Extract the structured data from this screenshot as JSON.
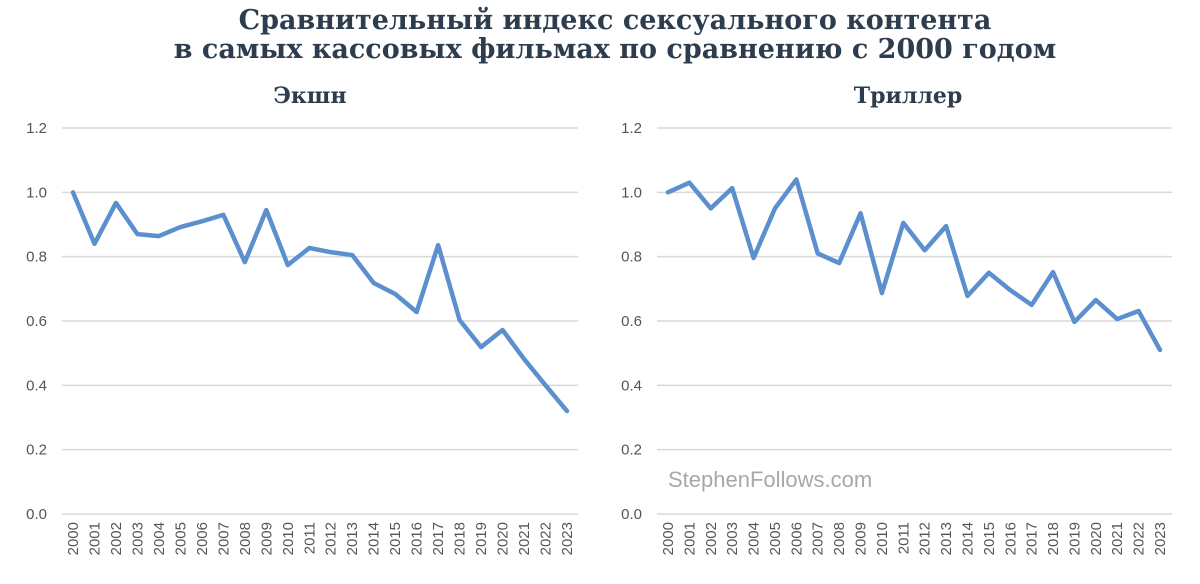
{
  "title_line1": "Сравнительный индекс сексуального контента",
  "title_line2": "в самых кассовых фильмах по сравнению с 2000 годом",
  "watermark": "StephenFollows.com",
  "colors": {
    "line": "#5b8fcd",
    "title": "#2e3d4d",
    "grid": "#d9d9d9"
  },
  "chart_data": [
    {
      "type": "line",
      "title": "Экшн",
      "xlabel": "",
      "ylabel": "",
      "ylim": [
        0,
        1.2
      ],
      "yticks": [
        "0.0",
        "0.2",
        "0.4",
        "0.6",
        "0.8",
        "1.0",
        "1.2"
      ],
      "grid": true,
      "x": [
        "2000",
        "2001",
        "2002",
        "2003",
        "2004",
        "2005",
        "2006",
        "2007",
        "2008",
        "2009",
        "2010",
        "2011",
        "2012",
        "2013",
        "2014",
        "2015",
        "2016",
        "2017",
        "2018",
        "2019",
        "2020",
        "2021",
        "2022",
        "2023"
      ],
      "values": [
        1.0,
        0.84,
        0.967,
        0.87,
        0.864,
        0.892,
        0.91,
        0.93,
        0.783,
        0.945,
        0.774,
        0.827,
        0.814,
        0.805,
        0.718,
        0.684,
        0.628,
        0.836,
        0.603,
        0.519,
        0.572,
        0.482,
        0.4,
        0.32
      ]
    },
    {
      "type": "line",
      "title": "Триллер",
      "xlabel": "",
      "ylabel": "",
      "ylim": [
        0,
        1.2
      ],
      "yticks": [
        "0.0",
        "0.2",
        "0.4",
        "0.6",
        "0.8",
        "1.0",
        "1.2"
      ],
      "grid": true,
      "x": [
        "2000",
        "2001",
        "2002",
        "2003",
        "2004",
        "2005",
        "2006",
        "2007",
        "2008",
        "2009",
        "2010",
        "2011",
        "2012",
        "2013",
        "2014",
        "2015",
        "2016",
        "2017",
        "2018",
        "2019",
        "2020",
        "2021",
        "2022",
        "2023"
      ],
      "values": [
        1.0,
        1.03,
        0.95,
        1.013,
        0.796,
        0.95,
        1.04,
        0.81,
        0.78,
        0.935,
        0.687,
        0.905,
        0.82,
        0.895,
        0.678,
        0.75,
        0.696,
        0.65,
        0.752,
        0.597,
        0.665,
        0.606,
        0.631,
        0.51
      ]
    }
  ]
}
